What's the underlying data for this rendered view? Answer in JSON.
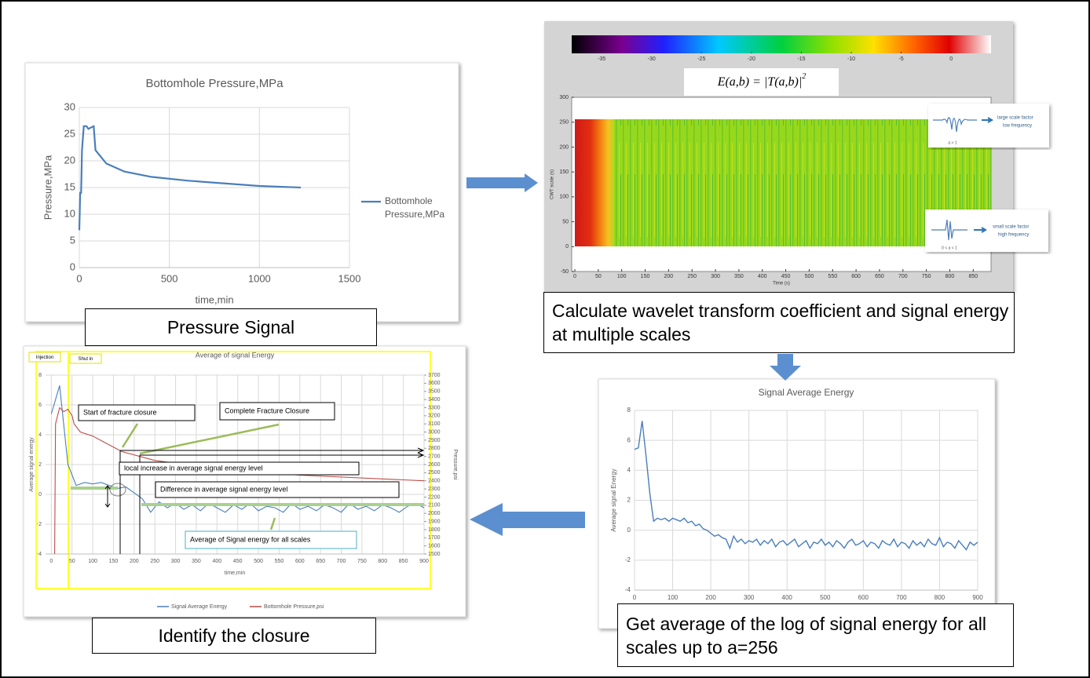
{
  "chart_data": [
    {
      "type": "line",
      "title": "Bottomhole Pressure,MPa",
      "xlabel": "time,min",
      "ylabel": "Pressure,MPa",
      "xlim": [
        0,
        1500
      ],
      "xticks": [
        0,
        500,
        1000,
        1500
      ],
      "ylim": [
        0,
        30
      ],
      "yticks": [
        0,
        5,
        10,
        15,
        20,
        25,
        30
      ],
      "grid": true,
      "legend": "right",
      "series": [
        {
          "name": "Bottomhole Pressure,MPa",
          "color": "#4a7ebb",
          "x": [
            0,
            5,
            10,
            15,
            25,
            40,
            50,
            80,
            90,
            150,
            250,
            400,
            600,
            800,
            1000,
            1230
          ],
          "values": [
            7,
            14,
            14,
            22,
            26.5,
            26.5,
            26,
            26.5,
            22,
            19.5,
            18,
            17,
            16.3,
            15.8,
            15.3,
            15
          ]
        }
      ]
    },
    {
      "type": "heatmap",
      "formula": "E(a,b) = |T(a,b)|",
      "formula_power": "2",
      "colorbar": {
        "lim": [
          -38,
          4
        ],
        "ticks": [
          -35,
          -30,
          -25,
          -20,
          -15,
          -10,
          -5,
          0
        ]
      },
      "xlabel": "Time (s)",
      "ylabel": "CWT scale (s)",
      "xlim": [
        0,
        888
      ],
      "xticks": [
        0,
        50,
        100,
        150,
        200,
        250,
        300,
        350,
        400,
        450,
        500,
        550,
        600,
        650,
        700,
        750,
        800,
        850
      ],
      "ylim": [
        -50,
        300
      ],
      "yticks": [
        -50,
        0,
        50,
        100,
        150,
        200,
        250,
        300
      ],
      "insets": [
        {
          "lines": [
            "large scale factor",
            "low frequency"
          ],
          "condition": "a > 1"
        },
        {
          "lines": [
            "small scale factor",
            "high frequency"
          ],
          "condition": "0 < a < 1"
        }
      ]
    },
    {
      "type": "line",
      "title": "Signal Average Energy",
      "ylabel": "Average signal Energy",
      "xlim": [
        0,
        900
      ],
      "xticks": [
        0,
        100,
        200,
        300,
        400,
        500,
        600,
        700,
        800,
        900
      ],
      "ylim": [
        -4,
        8
      ],
      "yticks": [
        -4,
        -2,
        0,
        2,
        4,
        6,
        8
      ],
      "grid": true,
      "series": [
        {
          "name": "Signal Average Energy",
          "color": "#4a7ebb",
          "x": [
            0,
            10,
            20,
            30,
            40,
            50,
            60,
            70,
            80,
            90,
            100,
            110,
            120,
            130,
            140,
            150,
            160,
            170,
            180,
            190,
            200,
            210,
            220,
            230,
            240,
            250,
            260,
            270,
            280,
            290,
            300,
            310,
            320,
            330,
            340,
            350,
            360,
            370,
            380,
            390,
            400,
            410,
            420,
            430,
            440,
            450,
            460,
            470,
            480,
            490,
            500,
            510,
            520,
            530,
            540,
            550,
            560,
            570,
            580,
            590,
            600,
            610,
            620,
            630,
            640,
            650,
            660,
            670,
            680,
            690,
            700,
            710,
            720,
            730,
            740,
            750,
            760,
            770,
            780,
            790,
            800,
            810,
            820,
            830,
            840,
            850,
            860,
            870,
            880,
            890,
            900
          ],
          "values": [
            5.4,
            5.5,
            7.3,
            5.0,
            2.5,
            0.6,
            0.8,
            0.7,
            0.8,
            0.6,
            0.8,
            0.7,
            0.6,
            0.8,
            0.5,
            0.6,
            0.3,
            0.4,
            0.1,
            0.0,
            -0.2,
            -0.4,
            -0.3,
            -0.5,
            -0.6,
            -1.2,
            -0.4,
            -0.8,
            -0.6,
            -0.9,
            -0.7,
            -0.8,
            -0.6,
            -1.0,
            -0.7,
            -0.9,
            -0.6,
            -1.1,
            -0.8,
            -0.7,
            -1.0,
            -0.8,
            -0.6,
            -1.1,
            -0.9,
            -0.7,
            -1.2,
            -0.8,
            -0.9,
            -0.6,
            -1.0,
            -0.8,
            -1.1,
            -0.7,
            -0.9,
            -1.2,
            -0.8,
            -0.6,
            -1.0,
            -0.9,
            -0.7,
            -1.1,
            -0.8,
            -0.9,
            -1.2,
            -0.7,
            -0.9,
            -1.0,
            -0.6,
            -1.1,
            -0.8,
            -0.9,
            -1.2,
            -0.7,
            -1.0,
            -0.8,
            -1.1,
            -0.6,
            -0.9,
            -1.0,
            -0.5,
            -1.1,
            -0.8,
            -0.9,
            -1.2,
            -0.7,
            -1.0,
            -1.3,
            -0.8,
            -1.0,
            -0.8
          ]
        }
      ]
    },
    {
      "type": "line",
      "title": "Average of signal Energy",
      "xlabel": "time,min",
      "ylabel": "Average signal energy",
      "y2label": "Pressure,psi",
      "xlim": [
        -14,
        900
      ],
      "xticks": [
        0,
        50,
        100,
        150,
        200,
        250,
        300,
        350,
        400,
        450,
        500,
        550,
        600,
        650,
        700,
        750,
        800,
        850,
        900
      ],
      "ylim": [
        -4,
        8
      ],
      "yticks": [
        -4,
        -2,
        0,
        2,
        4,
        6,
        8
      ],
      "y2lim": [
        1500,
        3700
      ],
      "y2ticks": [
        1500,
        1600,
        1700,
        1800,
        1900,
        2000,
        2100,
        2200,
        2300,
        2400,
        2500,
        2600,
        2700,
        2800,
        2900,
        3000,
        3100,
        3200,
        3300,
        3400,
        3500,
        3600,
        3700
      ],
      "grid": true,
      "legend": "bottom",
      "regions": [
        "Injection",
        "Shut in"
      ],
      "annotations": [
        "Start of fracture closure",
        "Complete Fracture Closure",
        "local increase in average signal energy level",
        "Difference in average signal energy level",
        "Average of Signal energy for all scales"
      ],
      "series": [
        {
          "name": "Signal Average Energy",
          "color": "#4a7ebb",
          "x": [
            0,
            20,
            40,
            60,
            80,
            100,
            120,
            140,
            160,
            180,
            200,
            220,
            240,
            260,
            280,
            300,
            320,
            340,
            360,
            380,
            400,
            420,
            440,
            460,
            480,
            500,
            520,
            540,
            560,
            580,
            600,
            620,
            640,
            660,
            680,
            700,
            720,
            740,
            760,
            780,
            800,
            820,
            840,
            860,
            880,
            900
          ],
          "values": [
            5.4,
            7.3,
            2.0,
            0.6,
            0.8,
            0.7,
            0.8,
            0.6,
            0.4,
            0.5,
            0.1,
            -0.3,
            -1.2,
            -0.5,
            -0.9,
            -0.6,
            -1.0,
            -0.7,
            -1.1,
            -0.6,
            -0.9,
            -1.2,
            -0.7,
            -1.0,
            -0.6,
            -1.1,
            -0.8,
            -0.9,
            -1.2,
            -0.6,
            -1.0,
            -0.8,
            -1.1,
            -0.7,
            -0.9,
            -1.2,
            -0.6,
            -1.0,
            -0.8,
            -1.1,
            -0.7,
            -0.9,
            -1.2,
            -0.8,
            -0.6,
            -0.9
          ]
        },
        {
          "name": "Bottomhole Pressure,psi",
          "color": "#be4b48",
          "axis": "y2",
          "x": [
            8,
            10,
            20,
            30,
            40,
            50,
            55,
            70,
            100,
            170,
            250,
            400,
            600,
            900
          ],
          "values": [
            1500,
            3100,
            3300,
            3250,
            3280,
            3200,
            3100,
            3000,
            2950,
            2760,
            2650,
            2550,
            2470,
            2400
          ]
        }
      ]
    }
  ],
  "captions": [
    "Pressure Signal",
    "Calculate wavelet transform coefficient and signal energy at multiple scales",
    "Get average of the log of signal energy for all scales up to a=256",
    "Identify the closure"
  ]
}
